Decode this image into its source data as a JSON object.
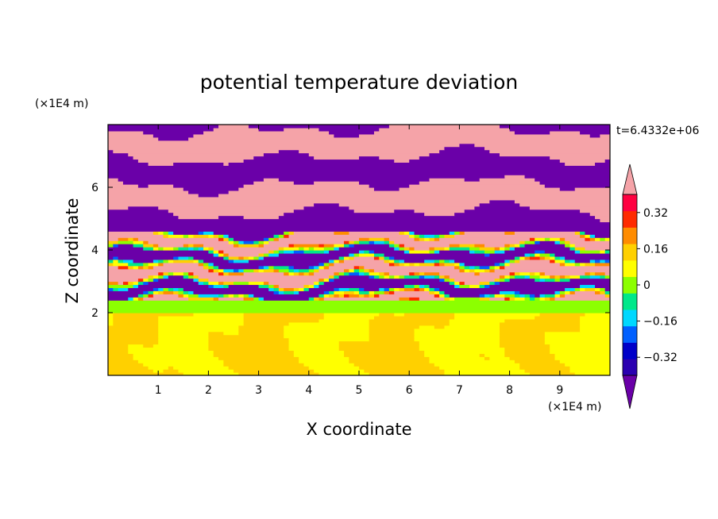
{
  "chart_data": {
    "type": "heatmap",
    "title": "potential temperature deviation",
    "xlabel": "X coordinate",
    "ylabel": "Z coordinate",
    "x_unit": "(×1E4 m)",
    "y_unit": "(×1E4 m)",
    "time_label": "t=6.4332e+06",
    "xlim": [
      0,
      10
    ],
    "ylim": [
      0,
      8
    ],
    "x_ticks": [
      1,
      2,
      3,
      4,
      5,
      6,
      7,
      8,
      9
    ],
    "y_ticks": [
      2,
      4,
      6
    ],
    "colorbar": {
      "levels": [
        -0.48,
        -0.4,
        -0.32,
        -0.24,
        -0.16,
        -0.08,
        0,
        0.08,
        0.16,
        0.24,
        0.32,
        0.4,
        0.48
      ],
      "tick_values": [
        0.32,
        0.16,
        0,
        -0.16,
        -0.32
      ],
      "tick_labels": [
        "0.32",
        "0.16",
        "0",
        "−0.16",
        "−0.32"
      ],
      "colors_low_to_high": [
        "#6a00a8",
        "#2b00b0",
        "#0000c8",
        "#0060ff",
        "#00d8ff",
        "#00e88a",
        "#8cff00",
        "#ffff00",
        "#ffd000",
        "#ff8c00",
        "#ff2a00",
        "#ff0040",
        "#f5a3a8"
      ],
      "extend": "both"
    },
    "field_layers": [
      {
        "z_range": [
          0,
          2
        ],
        "dominant_values": [
          0,
          0.08
        ],
        "description_values": "mixed"
      },
      {
        "z_range": [
          2,
          2.4
        ],
        "dominant_values": [
          -0.08
        ]
      },
      {
        "z_range": [
          2.4,
          4.6
        ],
        "dominant_values": [
          -0.48,
          0.48,
          -0.16,
          0.16
        ]
      },
      {
        "z_range": [
          4.6,
          8
        ],
        "dominant_values": [
          -0.48,
          0.48
        ]
      }
    ]
  }
}
